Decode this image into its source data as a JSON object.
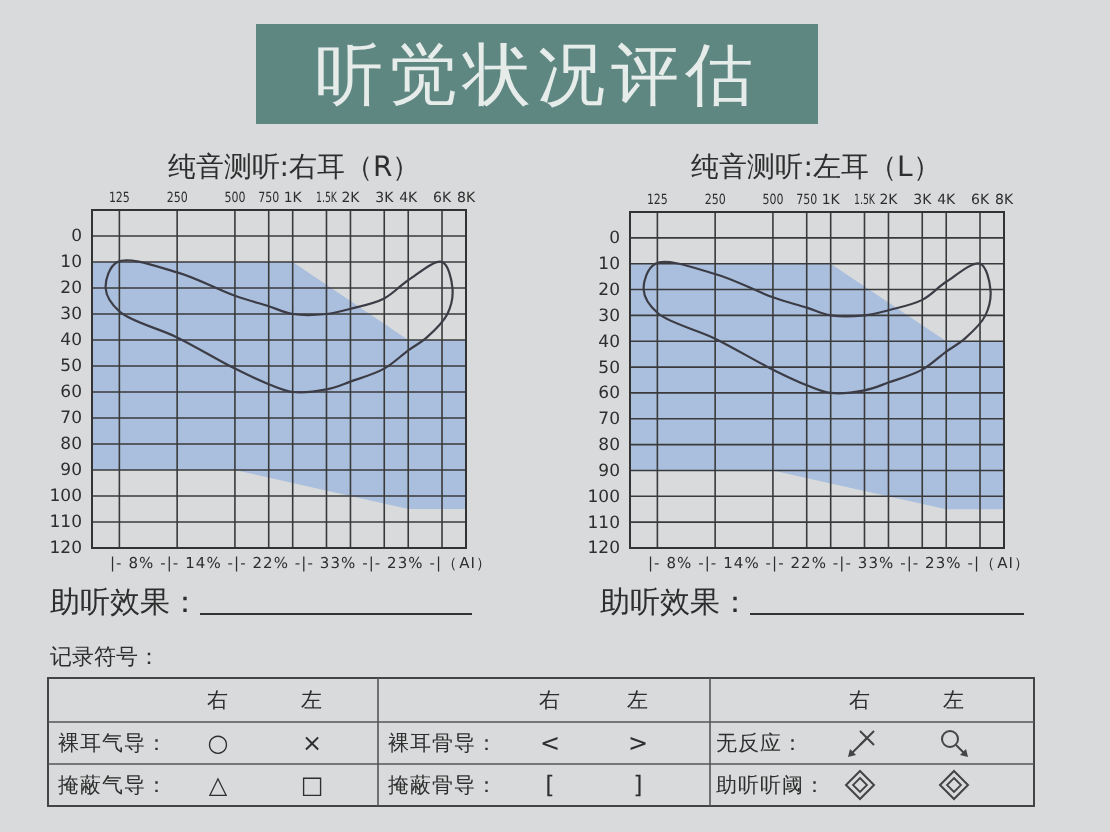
{
  "chart_data": [
    {
      "type": "other",
      "title": "听觉状况评估"
    },
    {
      "type": "area",
      "title": "纯音测听:右耳（R）",
      "xlim": [
        90,
        8000
      ],
      "xticks": [
        125,
        250,
        500,
        750,
        {
          "value": 1000,
          "label": "1K"
        },
        {
          "value": 1500,
          "label": "1.5K"
        },
        {
          "value": 2000,
          "label": "2K"
        },
        {
          "value": 3000,
          "label": "3K"
        },
        {
          "value": 4000,
          "label": "4K"
        },
        {
          "value": 6000,
          "label": "6K"
        },
        {
          "value": 8000,
          "label": "8K"
        }
      ],
      "log": "x",
      "ylim": [
        120,
        -10
      ],
      "yticks": [
        0,
        10,
        20,
        30,
        40,
        50,
        60,
        70,
        80,
        90,
        100,
        110,
        120
      ],
      "grid": true,
      "series": [
        {
          "color": "#aabfdd",
          "x": [
            90,
            500,
            1000,
            4000,
            8000
          ],
          "values": [
            null,
            null,
            null,
            null,
            null
          ],
          "lower": [
            10,
            10,
            10,
            40,
            40
          ],
          "upper": [
            90,
            90,
            95,
            105,
            105
          ]
        }
      ],
      "annotations": [
        "|- 8% -|- 14% -|- 22% -|- 33% -|- 23% -|（AI）",
        "助听效果："
      ]
    },
    {
      "type": "area",
      "title": "纯音测听:左耳（L）",
      "xlim": [
        90,
        8000
      ],
      "xticks": [
        125,
        250,
        500,
        750,
        {
          "value": 1000,
          "label": "1K"
        },
        {
          "value": 1500,
          "label": "1.5K"
        },
        {
          "value": 2000,
          "label": "2K"
        },
        {
          "value": 3000,
          "label": "3K"
        },
        {
          "value": 4000,
          "label": "4K"
        },
        {
          "value": 6000,
          "label": "6K"
        },
        {
          "value": 8000,
          "label": "8K"
        }
      ],
      "log": "x",
      "ylim": [
        120,
        -10
      ],
      "yticks": [
        0,
        10,
        20,
        30,
        40,
        50,
        60,
        70,
        80,
        90,
        100,
        110,
        120
      ],
      "grid": true,
      "series": [
        {
          "color": "#aabfdd",
          "x": [
            90,
            500,
            1000,
            4000,
            8000
          ],
          "values": [
            null,
            null,
            null,
            null,
            null
          ],
          "lower": [
            10,
            10,
            10,
            40,
            40
          ],
          "upper": [
            90,
            90,
            95,
            105,
            105
          ]
        }
      ],
      "annotations": [
        "|- 8% -|- 14% -|- 22% -|- 33% -|- 23% -|（AI）",
        "助听效果："
      ]
    },
    {
      "type": "other",
      "title": "记录符号：",
      "annotations": [
        "右",
        "左",
        "右",
        "左",
        "右",
        "左",
        "裸耳气导：",
        "○",
        "×",
        "裸耳骨导：",
        "<",
        ">",
        "无反应：",
        "掩蔽气导：",
        "△",
        "□",
        "掩蔽骨导：",
        "[",
        "]",
        "助听听阈："
      ]
    }
  ]
}
